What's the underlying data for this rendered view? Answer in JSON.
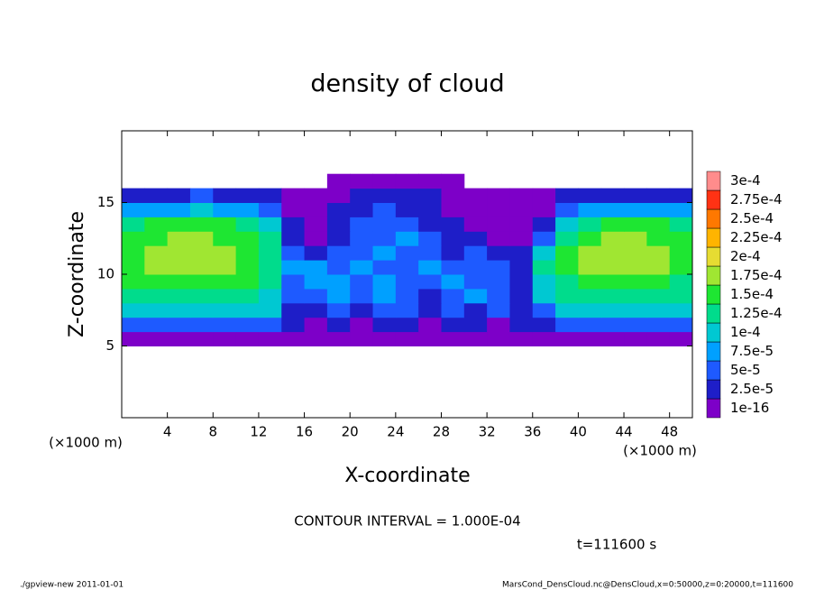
{
  "chart_data": {
    "type": "heatmap",
    "title": "density of cloud",
    "x_label": "X-coordinate",
    "y_label": "Z-coordinate",
    "x_unit": "(×1000 m)",
    "y_unit": "(×1000 m)",
    "xlim": [
      0,
      50
    ],
    "ylim": [
      0,
      20
    ],
    "xticks": [
      4,
      8,
      12,
      16,
      20,
      24,
      28,
      32,
      36,
      40,
      44,
      48
    ],
    "yticks": [
      5,
      10,
      15
    ],
    "x": [
      1,
      3,
      5,
      7,
      9,
      11,
      13,
      15,
      17,
      19,
      21,
      23,
      25,
      27,
      29,
      31,
      33,
      35,
      37,
      39,
      41,
      43,
      45,
      47,
      49
    ],
    "y": [
      5.5,
      6.5,
      7.5,
      8.5,
      9.5,
      10.5,
      11.5,
      12.5,
      13.5,
      14.5,
      15.5,
      16.5
    ],
    "values": [
      [
        1e-05,
        1e-05,
        1e-05,
        1e-05,
        1e-05,
        1e-05,
        1e-05,
        1e-05,
        1e-05,
        1e-05,
        1e-05,
        1e-05,
        1e-05,
        1e-05,
        1e-05,
        1e-05,
        1e-05,
        1e-05,
        1e-05,
        1e-05,
        1e-05,
        1e-05,
        1e-05,
        1e-05,
        1e-05
      ],
      [
        6e-05,
        6e-05,
        6e-05,
        6e-05,
        6e-05,
        6e-05,
        6e-05,
        3e-05,
        1e-05,
        3e-05,
        1e-05,
        3e-05,
        3e-05,
        1e-05,
        3e-05,
        3e-05,
        1e-05,
        3e-05,
        3e-05,
        6e-05,
        6e-05,
        6e-05,
        6e-05,
        6e-05,
        6e-05
      ],
      [
        0.00011,
        0.00011,
        0.00011,
        0.00011,
        0.00011,
        0.00011,
        0.00011,
        3e-05,
        3e-05,
        6e-05,
        3e-05,
        6e-05,
        6e-05,
        3e-05,
        6e-05,
        3e-05,
        6e-05,
        3e-05,
        6e-05,
        0.00011,
        0.00011,
        0.00011,
        0.00011,
        0.00011,
        0.00011
      ],
      [
        0.00013,
        0.00013,
        0.00013,
        0.00013,
        0.00013,
        0.00013,
        0.00011,
        6e-05,
        6e-05,
        8.5e-05,
        6e-05,
        8.5e-05,
        6e-05,
        3e-05,
        6e-05,
        8.5e-05,
        6e-05,
        3e-05,
        0.00011,
        0.00013,
        0.00013,
        0.00013,
        0.00013,
        0.00013,
        0.00013
      ],
      [
        0.00016,
        0.00016,
        0.00016,
        0.00016,
        0.00016,
        0.00016,
        0.00013,
        6e-05,
        8.5e-05,
        8.5e-05,
        6e-05,
        8.5e-05,
        6e-05,
        6e-05,
        8.5e-05,
        6e-05,
        6e-05,
        3e-05,
        0.00011,
        0.00013,
        0.00016,
        0.00016,
        0.00016,
        0.00016,
        0.00013
      ],
      [
        0.00016,
        0.00018,
        0.00018,
        0.00018,
        0.00018,
        0.00016,
        0.00013,
        8.5e-05,
        8.5e-05,
        6e-05,
        8.5e-05,
        6e-05,
        6e-05,
        8.5e-05,
        6e-05,
        6e-05,
        6e-05,
        3e-05,
        0.00013,
        0.00016,
        0.00018,
        0.00018,
        0.00018,
        0.00018,
        0.00016
      ],
      [
        0.00016,
        0.00018,
        0.00018,
        0.00018,
        0.00018,
        0.00016,
        0.00013,
        6e-05,
        3e-05,
        6e-05,
        6e-05,
        8.5e-05,
        6e-05,
        6e-05,
        3e-05,
        6e-05,
        3e-05,
        3e-05,
        0.00011,
        0.00016,
        0.00018,
        0.00018,
        0.00018,
        0.00018,
        0.00016
      ],
      [
        0.00016,
        0.00016,
        0.00018,
        0.00018,
        0.00016,
        0.00016,
        0.00013,
        3e-05,
        1e-05,
        3e-05,
        6e-05,
        6e-05,
        8.5e-05,
        6e-05,
        3e-05,
        3e-05,
        1e-05,
        1e-05,
        6e-05,
        0.00013,
        0.00016,
        0.00018,
        0.00018,
        0.00016,
        0.00016
      ],
      [
        0.00013,
        0.00016,
        0.00016,
        0.00016,
        0.00016,
        0.00013,
        0.00011,
        3e-05,
        1e-05,
        3e-05,
        6e-05,
        6e-05,
        6e-05,
        3e-05,
        3e-05,
        1e-05,
        1e-05,
        1e-05,
        3e-05,
        0.00011,
        0.00013,
        0.00016,
        0.00016,
        0.00016,
        0.00013
      ],
      [
        8.5e-05,
        8.5e-05,
        8.5e-05,
        0.00011,
        8.5e-05,
        8.5e-05,
        6e-05,
        1e-05,
        1e-05,
        3e-05,
        3e-05,
        6e-05,
        3e-05,
        3e-05,
        1e-05,
        1e-05,
        1e-05,
        1e-05,
        1e-05,
        6e-05,
        8.5e-05,
        8.5e-05,
        8.5e-05,
        8.5e-05,
        8.5e-05
      ],
      [
        3e-05,
        3e-05,
        3e-05,
        6e-05,
        3e-05,
        3e-05,
        3e-05,
        1e-05,
        1e-05,
        1e-05,
        3e-05,
        3e-05,
        3e-05,
        3e-05,
        1e-05,
        1e-05,
        1e-05,
        1e-05,
        1e-05,
        3e-05,
        3e-05,
        3e-05,
        3e-05,
        3e-05,
        3e-05
      ],
      [
        0,
        0,
        0,
        0,
        0,
        0,
        0,
        0,
        0,
        1e-05,
        1e-05,
        1e-05,
        1e-05,
        1e-05,
        1e-05,
        0,
        0,
        0,
        0,
        0,
        0,
        0,
        0,
        0,
        0
      ]
    ],
    "levels": [
      {
        "value": 1e-16,
        "label": "1e-16"
      },
      {
        "value": 2.5e-05,
        "label": "2.5e-5"
      },
      {
        "value": 5e-05,
        "label": "5e-5"
      },
      {
        "value": 7.5e-05,
        "label": "7.5e-5"
      },
      {
        "value": 0.0001,
        "label": "1e-4"
      },
      {
        "value": 0.000125,
        "label": "1.25e-4"
      },
      {
        "value": 0.00015,
        "label": "1.5e-4"
      },
      {
        "value": 0.000175,
        "label": "1.75e-4"
      },
      {
        "value": 0.0002,
        "label": "2e-4"
      },
      {
        "value": 0.000225,
        "label": "2.25e-4"
      },
      {
        "value": 0.00025,
        "label": "2.5e-4"
      },
      {
        "value": 0.000275,
        "label": "2.75e-4"
      },
      {
        "value": 0.0003,
        "label": "3e-4"
      }
    ],
    "colors": [
      "#7d00c8",
      "#1e1ec8",
      "#1e5aff",
      "#00a0ff",
      "#00c8d2",
      "#00dc8c",
      "#1ee632",
      "#a0e632",
      "#e6dc32",
      "#ffb400",
      "#ff7800",
      "#ff3214",
      "#ff8c8c"
    ],
    "contour_note": "CONTOUR INTERVAL = 1.000E-04",
    "time_label": "t=111600 s",
    "footer_left": "./gpview-new  2011-01-01",
    "footer_right": "MarsCond_DensCloud.nc@DensCloud,x=0:50000,z=0:20000,t=111600"
  }
}
